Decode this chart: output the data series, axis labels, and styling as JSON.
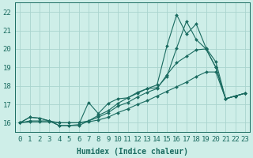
{
  "xlabel": "Humidex (Indice chaleur)",
  "bg_color": "#ceeee8",
  "grid_color": "#aad4ce",
  "line_color": "#1a6b60",
  "xlim": [
    -0.5,
    23.5
  ],
  "ylim": [
    15.5,
    22.5
  ],
  "xticks": [
    0,
    1,
    2,
    3,
    4,
    5,
    6,
    7,
    8,
    9,
    10,
    11,
    12,
    13,
    14,
    15,
    16,
    17,
    18,
    19,
    20,
    21,
    22,
    23
  ],
  "yticks": [
    16,
    17,
    18,
    19,
    20,
    21,
    22
  ],
  "line_spike_x": [
    0,
    1,
    2,
    3,
    4,
    5,
    6,
    7,
    8,
    9,
    10,
    11,
    12,
    13,
    14,
    15,
    16,
    17,
    18,
    19,
    20,
    21,
    22,
    23
  ],
  "line_spike_y": [
    16.0,
    16.3,
    16.25,
    16.1,
    15.85,
    15.85,
    15.85,
    16.1,
    16.4,
    16.65,
    17.05,
    17.35,
    17.65,
    17.85,
    18.05,
    20.15,
    21.85,
    20.8,
    21.35,
    20.05,
    19.3,
    17.3,
    17.45,
    17.6
  ],
  "line_mid_x": [
    0,
    1,
    2,
    3,
    4,
    5,
    6,
    7,
    8,
    9,
    10,
    11,
    12,
    13,
    14,
    15,
    16,
    17,
    18,
    19,
    20,
    21,
    22,
    23
  ],
  "line_mid_y": [
    16.0,
    16.3,
    16.25,
    16.1,
    15.85,
    15.85,
    15.9,
    17.1,
    16.5,
    17.05,
    17.3,
    17.35,
    17.6,
    17.85,
    17.9,
    18.5,
    20.05,
    21.5,
    20.5,
    20.0,
    19.0,
    17.3,
    17.45,
    17.6
  ],
  "line_upper_x": [
    0,
    1,
    2,
    3,
    4,
    5,
    6,
    7,
    8,
    9,
    10,
    11,
    12,
    13,
    14,
    15,
    16,
    17,
    18,
    19,
    20,
    21,
    22,
    23
  ],
  "line_upper_y": [
    16.0,
    16.1,
    16.1,
    16.1,
    16.0,
    16.0,
    16.0,
    16.1,
    16.3,
    16.55,
    16.9,
    17.1,
    17.4,
    17.65,
    17.85,
    18.6,
    19.25,
    19.6,
    19.95,
    20.0,
    19.0,
    17.3,
    17.45,
    17.6
  ],
  "line_base_x": [
    0,
    1,
    2,
    3,
    4,
    5,
    6,
    7,
    8,
    9,
    10,
    11,
    12,
    13,
    14,
    15,
    16,
    17,
    18,
    19,
    20,
    21,
    22,
    23
  ],
  "line_base_y": [
    16.0,
    16.05,
    16.05,
    16.05,
    16.0,
    16.0,
    16.0,
    16.05,
    16.15,
    16.3,
    16.55,
    16.75,
    17.0,
    17.2,
    17.45,
    17.7,
    17.95,
    18.2,
    18.5,
    18.75,
    18.75,
    17.3,
    17.45,
    17.6
  ],
  "font_family": "monospace",
  "xlabel_fontsize": 7,
  "tick_fontsize": 6.5
}
